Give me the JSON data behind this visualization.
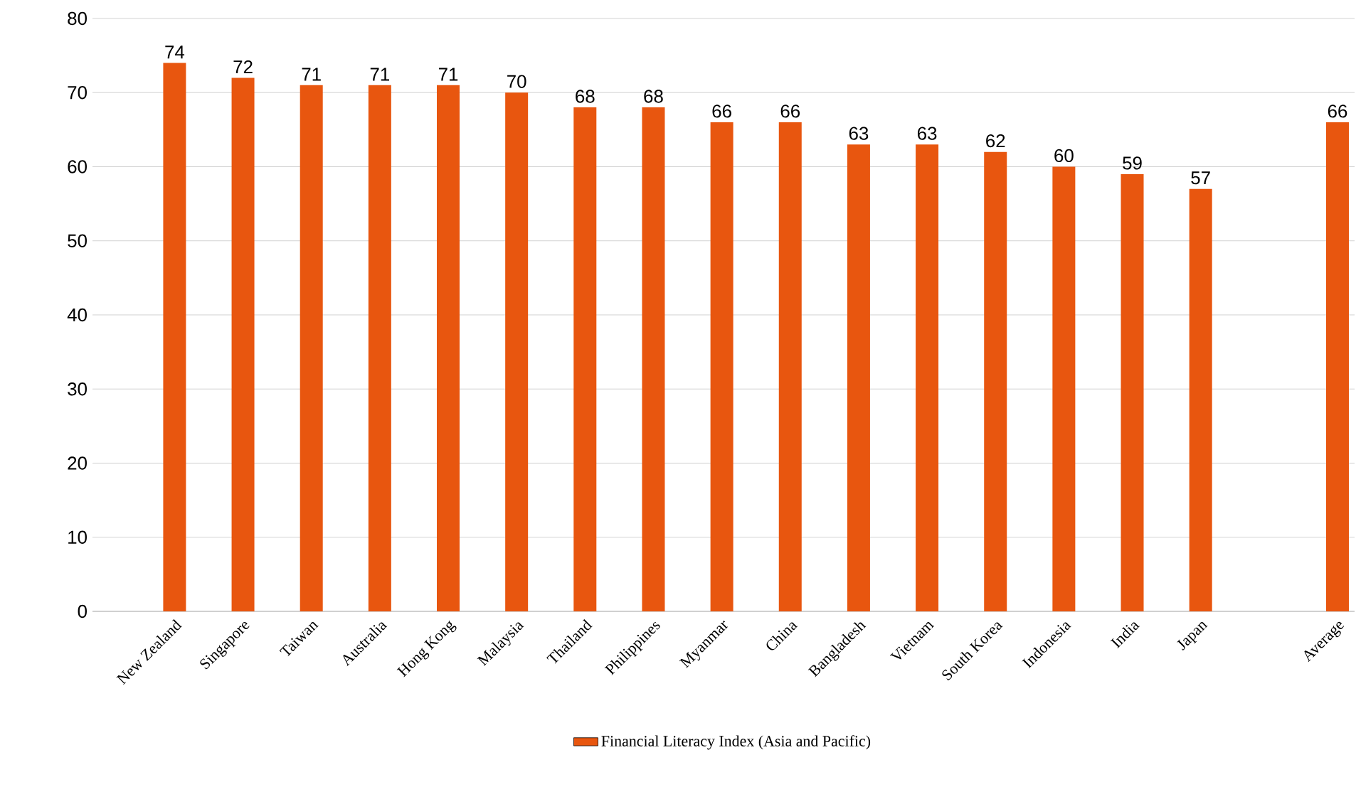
{
  "chart_data": {
    "type": "bar",
    "categories": [
      "New Zealand",
      "Singapore",
      "Taiwan",
      "Australia",
      "Hong Kong",
      "Malaysia",
      "Thailand",
      "Philippines",
      "Myanmar",
      "China",
      "Bangladesh",
      "Vietnam",
      "South Korea",
      "Indonesia",
      "India",
      "Japan",
      null,
      "Average"
    ],
    "series": [
      {
        "name": "Financial Literacy Index (Asia and Pacific)",
        "color": "#e8560f",
        "values": [
          74,
          72,
          71,
          71,
          71,
          70,
          68,
          68,
          66,
          66,
          63,
          63,
          62,
          60,
          59,
          57,
          null,
          66
        ]
      }
    ],
    "ylim": [
      0,
      80
    ],
    "yticks": [
      0,
      10,
      20,
      30,
      40,
      50,
      60,
      70,
      80
    ],
    "grid": "y",
    "legend": "bottom",
    "data_labels": true
  }
}
